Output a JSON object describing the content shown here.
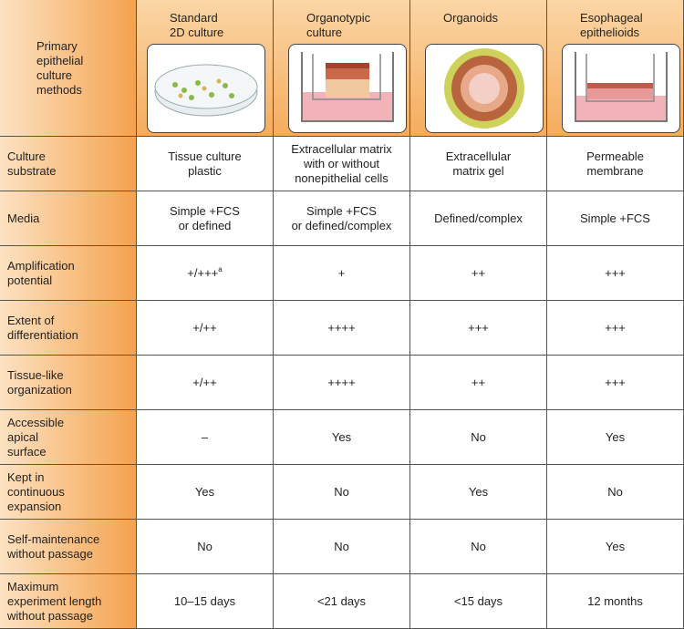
{
  "header": {
    "corner": "Primary\nepithelial\nculture\nmethods",
    "columns": [
      "Standard\n2D culture",
      "Organotypic\nculture",
      "Organoids",
      "Esophageal\nepithelioids"
    ]
  },
  "rows": [
    {
      "label": "Culture\nsubstrate",
      "cells": [
        "Tissue culture\nplastic",
        "Extracellular matrix\nwith or without\nnonepithelial cells",
        "Extracellular\nmatrix gel",
        "Permeable\nmembrane"
      ]
    },
    {
      "label": "Media",
      "cells": [
        "Simple +FCS\nor defined",
        "Simple +FCS\nor defined/complex",
        "Defined/complex",
        "Simple +FCS"
      ]
    },
    {
      "label": "Amplification\npotential",
      "cells": [
        {
          "text": "+/+++",
          "sup": "a"
        },
        "+",
        "++",
        "+++"
      ]
    },
    {
      "label": "Extent of\ndifferentiation",
      "cells": [
        "+/++",
        "++++",
        "+++",
        "+++"
      ]
    },
    {
      "label": "Tissue-like\norganization",
      "cells": [
        "+/++",
        "++++",
        "++",
        "+++"
      ]
    },
    {
      "label": "Accessible\napical\nsurface",
      "cells": [
        "–",
        "Yes",
        "No",
        "Yes"
      ]
    },
    {
      "label": "Kept in\ncontinuous\nexpansion",
      "cells": [
        "Yes",
        "No",
        "Yes",
        "No"
      ]
    },
    {
      "label": "Self-maintenance\nwithout passage",
      "cells": [
        "No",
        "No",
        "No",
        "Yes"
      ]
    },
    {
      "label": "Maximum\nexperiment length\nwithout passage",
      "cells": [
        "10–15 days",
        "<21 days",
        "<15 days",
        "12 months"
      ]
    }
  ]
}
